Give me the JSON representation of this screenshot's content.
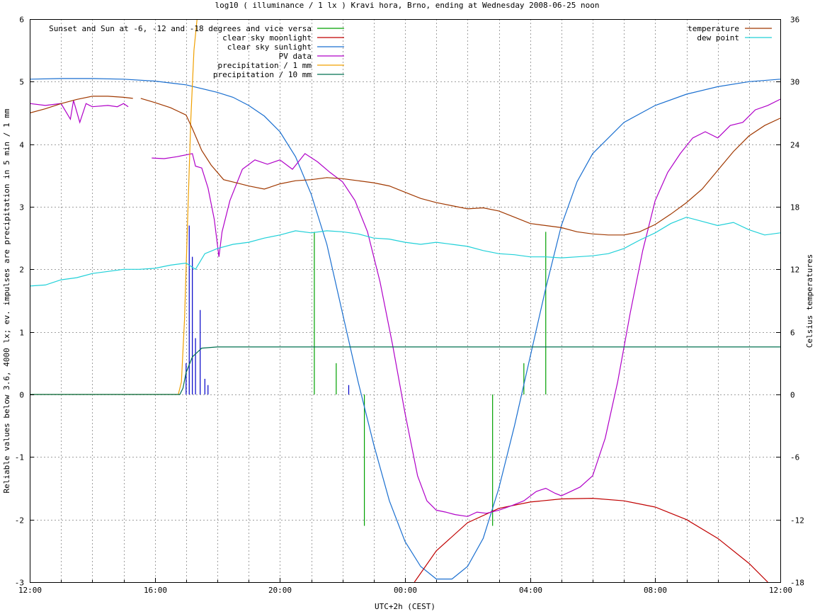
{
  "chart_data": {
    "type": "line",
    "title": "log10 ( illuminance / 1 lx ) Kravi hora, Brno, ending at Wednesday 2008-06-25 noon",
    "xlabel": "UTC+2h (CEST)",
    "ylabel": "Reliable values below 3.6, 4000 lx; ev. impulses are precipitation in 5 min / 1 mm",
    "y2label": "Celsius temperatures",
    "x_unit": "hours since 12:00 (UTC+2h)",
    "xlim": [
      0,
      24
    ],
    "ylim": [
      -3,
      6
    ],
    "y2lim": [
      -18,
      36
    ],
    "grid": true,
    "x_ticks": [
      {
        "pos": 0,
        "label": "12:00"
      },
      {
        "pos": 4,
        "label": "16:00"
      },
      {
        "pos": 8,
        "label": "20:00"
      },
      {
        "pos": 12,
        "label": "00:00"
      },
      {
        "pos": 16,
        "label": "04:00"
      },
      {
        "pos": 20,
        "label": "08:00"
      },
      {
        "pos": 24,
        "label": "12:00"
      }
    ],
    "y_ticks": [
      "-3",
      "-2",
      "-1",
      "0",
      "1",
      "2",
      "3",
      "4",
      "5",
      "6"
    ],
    "y2_ticks": [
      "-18",
      "-12",
      "-6",
      "0",
      "6",
      "12",
      "18",
      "24",
      "30",
      "36"
    ],
    "legend_left": [
      {
        "label": "Sunset and Sun at -6, -12 and -18 degrees and vice versa",
        "color": "#00a000"
      },
      {
        "label": "clear sky moonlight",
        "color": "#c00000"
      },
      {
        "label": "clear sky sunlight",
        "color": "#1a6fd0"
      },
      {
        "label": "PV data",
        "color": "#b000c8"
      },
      {
        "label": "precipitation / 1 mm",
        "color": "#f0a000"
      },
      {
        "label": "precipitation / 10 mm",
        "color": "#007050"
      }
    ],
    "legend_right": [
      {
        "label": "temperature",
        "color": "#a03800"
      },
      {
        "label": "dew point",
        "color": "#20d0d8"
      }
    ],
    "series": [
      {
        "name": "clear sky sunlight",
        "axis": "left",
        "color": "#1a6fd0",
        "points": [
          [
            0,
            5.04
          ],
          [
            1,
            5.05
          ],
          [
            2,
            5.05
          ],
          [
            3,
            5.04
          ],
          [
            4,
            5.01
          ],
          [
            5,
            4.95
          ],
          [
            6,
            4.83
          ],
          [
            6.5,
            4.75
          ],
          [
            7,
            4.62
          ],
          [
            7.5,
            4.45
          ],
          [
            8,
            4.2
          ],
          [
            8.5,
            3.8
          ],
          [
            9,
            3.2
          ],
          [
            9.5,
            2.4
          ],
          [
            10,
            1.3
          ],
          [
            10.5,
            0.2
          ],
          [
            11,
            -0.8
          ],
          [
            11.5,
            -1.7
          ],
          [
            12,
            -2.35
          ],
          [
            12.5,
            -2.75
          ],
          [
            13,
            -2.95
          ],
          [
            13.5,
            -2.95
          ],
          [
            14,
            -2.75
          ],
          [
            14.5,
            -2.3
          ],
          [
            15,
            -1.5
          ],
          [
            15.5,
            -0.5
          ],
          [
            16,
            0.6
          ],
          [
            16.5,
            1.7
          ],
          [
            17,
            2.7
          ],
          [
            17.5,
            3.4
          ],
          [
            18,
            3.85
          ],
          [
            19,
            4.35
          ],
          [
            20,
            4.62
          ],
          [
            21,
            4.8
          ],
          [
            22,
            4.92
          ],
          [
            23,
            5.0
          ],
          [
            24,
            5.04
          ]
        ]
      },
      {
        "name": "clear sky moonlight",
        "axis": "left",
        "color": "#c00000",
        "points": [
          [
            12.3,
            -3.0
          ],
          [
            13,
            -2.5
          ],
          [
            14,
            -2.05
          ],
          [
            15,
            -1.82
          ],
          [
            16,
            -1.72
          ],
          [
            17,
            -1.67
          ],
          [
            18,
            -1.66
          ],
          [
            19,
            -1.7
          ],
          [
            20,
            -1.8
          ],
          [
            21,
            -2.0
          ],
          [
            22,
            -2.3
          ],
          [
            23,
            -2.7
          ],
          [
            23.6,
            -3.0
          ]
        ]
      },
      {
        "name": "PV data",
        "axis": "left",
        "color": "#b000c8",
        "points": [
          [
            0,
            4.65
          ],
          [
            0.5,
            4.62
          ],
          [
            1,
            4.65
          ],
          [
            1.3,
            4.4
          ],
          [
            1.4,
            4.7
          ],
          [
            1.6,
            4.35
          ],
          [
            1.8,
            4.65
          ],
          [
            2,
            4.6
          ],
          [
            2.5,
            4.62
          ],
          [
            2.8,
            4.6
          ],
          [
            3,
            4.65
          ],
          [
            3.15,
            4.6
          ],
          [
            3.15,
            null
          ],
          [
            3.9,
            3.78
          ],
          [
            4.3,
            3.77
          ],
          [
            4.7,
            3.8
          ],
          [
            5.2,
            3.85
          ],
          [
            5.3,
            3.65
          ],
          [
            5.5,
            3.62
          ],
          [
            5.7,
            3.3
          ],
          [
            5.9,
            2.8
          ],
          [
            6.0,
            2.4
          ],
          [
            6.05,
            2.2
          ],
          [
            6.15,
            2.6
          ],
          [
            6.4,
            3.1
          ],
          [
            6.8,
            3.6
          ],
          [
            7.2,
            3.75
          ],
          [
            7.6,
            3.68
          ],
          [
            8.0,
            3.75
          ],
          [
            8.4,
            3.6
          ],
          [
            8.8,
            3.85
          ],
          [
            9.2,
            3.72
          ],
          [
            9.6,
            3.55
          ],
          [
            10.0,
            3.4
          ],
          [
            10.4,
            3.1
          ],
          [
            10.8,
            2.6
          ],
          [
            11.2,
            1.8
          ],
          [
            11.6,
            0.8
          ],
          [
            12.0,
            -0.3
          ],
          [
            12.4,
            -1.3
          ],
          [
            12.7,
            -1.7
          ],
          [
            13.0,
            -1.85
          ],
          [
            13.3,
            -1.88
          ],
          [
            13.6,
            -1.92
          ],
          [
            14.0,
            -1.95
          ],
          [
            14.3,
            -1.88
          ],
          [
            14.6,
            -1.9
          ],
          [
            15.0,
            -1.85
          ],
          [
            15.4,
            -1.78
          ],
          [
            15.8,
            -1.7
          ],
          [
            16.2,
            -1.55
          ],
          [
            16.5,
            -1.5
          ],
          [
            16.8,
            -1.58
          ],
          [
            17.0,
            -1.62
          ],
          [
            17.3,
            -1.55
          ],
          [
            17.6,
            -1.48
          ],
          [
            18.0,
            -1.3
          ],
          [
            18.4,
            -0.7
          ],
          [
            18.8,
            0.2
          ],
          [
            19.2,
            1.3
          ],
          [
            19.6,
            2.3
          ],
          [
            20.0,
            3.1
          ],
          [
            20.4,
            3.55
          ],
          [
            20.8,
            3.85
          ],
          [
            21.2,
            4.1
          ],
          [
            21.6,
            4.2
          ],
          [
            22.0,
            4.1
          ],
          [
            22.4,
            4.3
          ],
          [
            22.8,
            4.35
          ],
          [
            23.2,
            4.55
          ],
          [
            23.6,
            4.62
          ],
          [
            24,
            4.72
          ]
        ]
      },
      {
        "name": "precipitation / 1 mm",
        "axis": "left",
        "color": "#f0a000",
        "points": [
          [
            0,
            0
          ],
          [
            4.75,
            0
          ],
          [
            4.85,
            0.2
          ],
          [
            4.95,
            1.2
          ],
          [
            5.05,
            2.8
          ],
          [
            5.15,
            4.4
          ],
          [
            5.25,
            5.5
          ],
          [
            5.35,
            6.0
          ]
        ]
      },
      {
        "name": "precipitation / 10 mm",
        "axis": "left",
        "color": "#007050",
        "points": [
          [
            0,
            0
          ],
          [
            4.8,
            0
          ],
          [
            4.9,
            0.1
          ],
          [
            5.0,
            0.35
          ],
          [
            5.2,
            0.6
          ],
          [
            5.5,
            0.74
          ],
          [
            6.0,
            0.76
          ],
          [
            12,
            0.76
          ],
          [
            24,
            0.76
          ]
        ]
      },
      {
        "name": "temperature",
        "axis": "right",
        "color": "#a03800",
        "points": [
          [
            0,
            27.0
          ],
          [
            0.5,
            27.4
          ],
          [
            1,
            27.9
          ],
          [
            1.5,
            28.3
          ],
          [
            2,
            28.6
          ],
          [
            2.5,
            28.6
          ],
          [
            3,
            28.5
          ],
          [
            3.3,
            28.4
          ],
          [
            3.5,
            null
          ],
          [
            3.55,
            28.4
          ],
          [
            4,
            28.0
          ],
          [
            4.5,
            27.5
          ],
          [
            5,
            26.8
          ],
          [
            5.2,
            25.5
          ],
          [
            5.5,
            23.4
          ],
          [
            5.8,
            22.0
          ],
          [
            6.2,
            20.6
          ],
          [
            6.6,
            20.3
          ],
          [
            7,
            20.0
          ],
          [
            7.5,
            19.7
          ],
          [
            8,
            20.2
          ],
          [
            8.5,
            20.5
          ],
          [
            9,
            20.6
          ],
          [
            9.5,
            20.8
          ],
          [
            10,
            20.7
          ],
          [
            10.5,
            20.5
          ],
          [
            11,
            20.3
          ],
          [
            11.5,
            20.0
          ],
          [
            12,
            19.4
          ],
          [
            12.5,
            18.8
          ],
          [
            13,
            18.4
          ],
          [
            13.5,
            18.1
          ],
          [
            14,
            17.8
          ],
          [
            14.5,
            17.9
          ],
          [
            15,
            17.6
          ],
          [
            15.5,
            17.0
          ],
          [
            16,
            16.4
          ],
          [
            16.5,
            16.2
          ],
          [
            17,
            16.0
          ],
          [
            17.5,
            15.6
          ],
          [
            18,
            15.4
          ],
          [
            18.5,
            15.3
          ],
          [
            19,
            15.3
          ],
          [
            19.5,
            15.6
          ],
          [
            20,
            16.3
          ],
          [
            20.5,
            17.3
          ],
          [
            21,
            18.4
          ],
          [
            21.5,
            19.7
          ],
          [
            22,
            21.5
          ],
          [
            22.5,
            23.3
          ],
          [
            23,
            24.8
          ],
          [
            23.5,
            25.8
          ],
          [
            24,
            26.5
          ]
        ]
      },
      {
        "name": "dew point",
        "axis": "right",
        "color": "#20d0d8",
        "points": [
          [
            0,
            10.4
          ],
          [
            0.5,
            10.5
          ],
          [
            1,
            11.0
          ],
          [
            1.5,
            11.2
          ],
          [
            2,
            11.6
          ],
          [
            2.5,
            11.8
          ],
          [
            3,
            12.0
          ],
          [
            3.5,
            12.0
          ],
          [
            4,
            12.1
          ],
          [
            4.5,
            12.4
          ],
          [
            5,
            12.6
          ],
          [
            5.3,
            12.0
          ],
          [
            5.6,
            13.5
          ],
          [
            6,
            14.0
          ],
          [
            6.5,
            14.4
          ],
          [
            7,
            14.6
          ],
          [
            7.5,
            15.0
          ],
          [
            8,
            15.3
          ],
          [
            8.5,
            15.7
          ],
          [
            9,
            15.5
          ],
          [
            9.5,
            15.7
          ],
          [
            10,
            15.6
          ],
          [
            10.5,
            15.4
          ],
          [
            11,
            15.0
          ],
          [
            11.5,
            14.9
          ],
          [
            12,
            14.6
          ],
          [
            12.5,
            14.4
          ],
          [
            13,
            14.6
          ],
          [
            13.5,
            14.4
          ],
          [
            14,
            14.2
          ],
          [
            14.5,
            13.8
          ],
          [
            15,
            13.5
          ],
          [
            15.5,
            13.4
          ],
          [
            16,
            13.2
          ],
          [
            16.5,
            13.2
          ],
          [
            17,
            13.1
          ],
          [
            17.5,
            13.2
          ],
          [
            18,
            13.3
          ],
          [
            18.5,
            13.5
          ],
          [
            19,
            14.0
          ],
          [
            19.5,
            14.8
          ],
          [
            20,
            15.5
          ],
          [
            20.5,
            16.4
          ],
          [
            21,
            17.0
          ],
          [
            21.5,
            16.6
          ],
          [
            22,
            16.2
          ],
          [
            22.5,
            16.5
          ],
          [
            23,
            15.8
          ],
          [
            23.5,
            15.3
          ],
          [
            24,
            15.5
          ]
        ]
      }
    ],
    "impulses": [
      {
        "name": "sun angle markers",
        "color": "#00a000",
        "values": [
          [
            9.1,
            2.6
          ],
          [
            9.8,
            0.5
          ],
          [
            10.7,
            -2.1
          ],
          [
            14.8,
            -2.1
          ],
          [
            15.8,
            0.5
          ],
          [
            16.5,
            2.6
          ]
        ]
      },
      {
        "name": "precipitation impulses",
        "color": "#0000c8",
        "values": [
          [
            5.0,
            0.5
          ],
          [
            5.1,
            2.7
          ],
          [
            5.2,
            2.2
          ],
          [
            5.3,
            0.9
          ],
          [
            5.45,
            1.35
          ],
          [
            5.6,
            0.25
          ],
          [
            5.7,
            0.15
          ],
          [
            10.2,
            0.15
          ]
        ]
      }
    ]
  }
}
